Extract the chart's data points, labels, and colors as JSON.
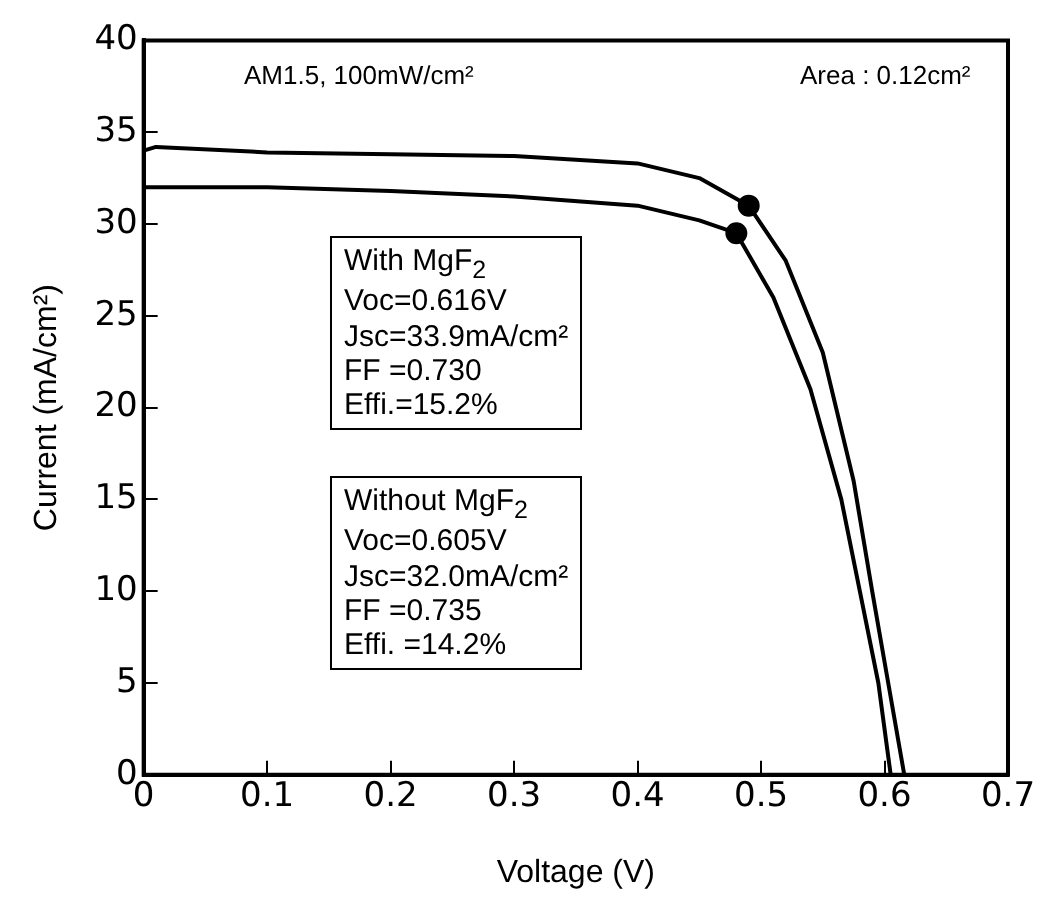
{
  "chart_data": {
    "type": "line",
    "xlabel": "Voltage (V)",
    "ylabel": "Current (mA/cm²)",
    "xlim": [
      0,
      0.7
    ],
    "xticks": [
      0,
      0.1,
      0.2,
      0.3,
      0.4,
      0.5,
      0.6,
      0.7
    ],
    "ylim": [
      0,
      40
    ],
    "yticks": [
      0,
      5,
      10,
      15,
      20,
      25,
      30,
      35,
      40
    ],
    "grid": false,
    "legend": false,
    "marker": "none",
    "line_style": "solid",
    "series": [
      {
        "color": "#000000",
        "x": [
          0,
          0.01,
          0.1,
          0.2,
          0.3,
          0.4,
          0.45,
          0.49,
          0.52,
          0.55,
          0.575,
          0.59,
          0.603,
          0.616
        ],
        "values": [
          34.0,
          34.2,
          33.9,
          33.8,
          33.7,
          33.3,
          32.5,
          31.0,
          28.0,
          23.0,
          16.0,
          10.0,
          5.0,
          0
        ]
      },
      {
        "color": "#000000",
        "x": [
          0,
          0.1,
          0.2,
          0.3,
          0.4,
          0.45,
          0.48,
          0.51,
          0.54,
          0.565,
          0.58,
          0.595,
          0.605
        ],
        "values": [
          32.0,
          32.0,
          31.8,
          31.5,
          31.0,
          30.2,
          29.5,
          26.0,
          21.0,
          15.0,
          10.0,
          5.0,
          0
        ]
      },
      {
        "type": "scatter",
        "color": "#000000",
        "marker": "circle",
        "x": [
          0.49,
          0.48
        ],
        "values": [
          31.0,
          29.5
        ]
      }
    ],
    "annotations": [
      "AM1.5, 100mW/cm²",
      "Area : 0.12cm²",
      "With MgF$_{2}$\nVoc=0.616V\nJsc=33.9mA/cm²\nFF  =0.730\nEffi.=15.2%",
      "Without MgF$_{2}$\nVoc=0.605V\nJsc=32.0mA/cm²\nFF  =0.735\nEffi. =14.2%"
    ]
  }
}
